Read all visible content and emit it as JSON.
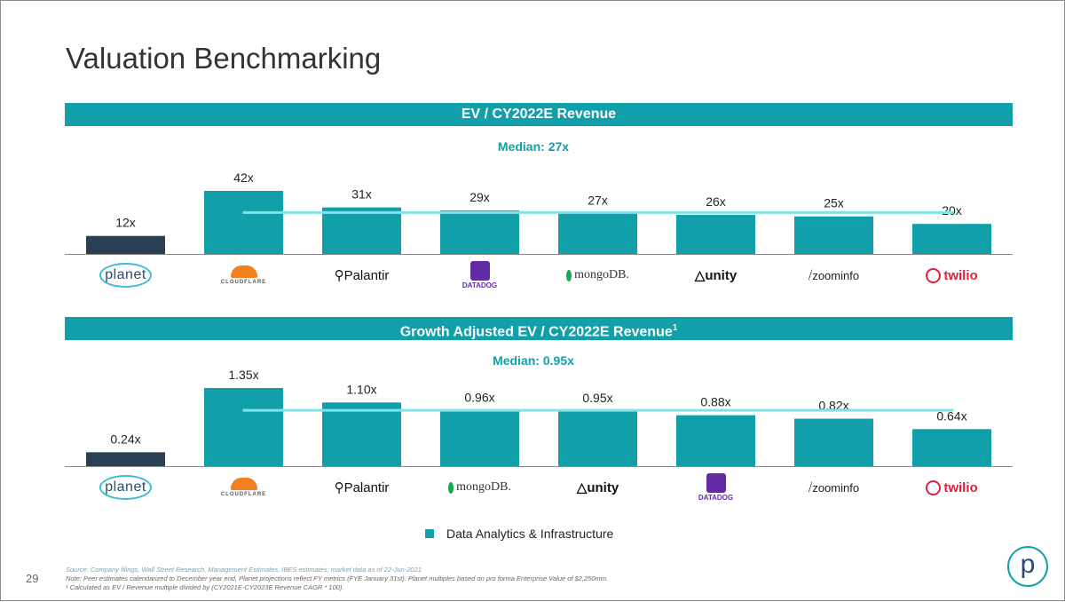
{
  "title": "Valuation Benchmarking",
  "legend": {
    "label": "Data Analytics & Infrastructure"
  },
  "footnotes": [
    "Source: Company filings, Wall Street Research, Management Estimates, IBES estimates; market data as of 22-Jun-2021",
    "Note: Peer estimates calendarized to December year end, Planet projections reflect FY metrics (FYE January 31st). Planet multiples based on pro forma Enterprise Value of $2,250mm.",
    "¹ Calculated as EV / Revenue multiple divided by (CY2021E-CY2023E Revenue CAGR * 100)."
  ],
  "page_number": "29",
  "brand_logo": "p",
  "colors": {
    "teal": "#119fa9",
    "navy": "#2b3f52",
    "median_line": "#7fe3ea"
  },
  "chart_data": [
    {
      "type": "bar",
      "title": "EV / CY2022E Revenue",
      "title_sup": "",
      "median_label": "Median: 27x",
      "median": 27,
      "categories": [
        "planet",
        "CLOUDFLARE",
        "Palantir",
        "DATADOG",
        "mongoDB.",
        "unity",
        "zoominfo",
        "twilio"
      ],
      "values": [
        12,
        42,
        31,
        29,
        27,
        26,
        25,
        20
      ],
      "labels": [
        "12x",
        "42x",
        "31x",
        "29x",
        "27x",
        "26x",
        "25x",
        "20x"
      ],
      "highlight_index": 0,
      "ylim": [
        0,
        42
      ]
    },
    {
      "type": "bar",
      "title": "Growth Adjusted EV / CY2022E Revenue",
      "title_sup": "1",
      "median_label": "Median: 0.95x",
      "median": 0.95,
      "categories": [
        "planet",
        "CLOUDFLARE",
        "Palantir",
        "mongoDB.",
        "unity",
        "DATADOG",
        "zoominfo",
        "twilio"
      ],
      "values": [
        0.24,
        1.35,
        1.1,
        0.96,
        0.95,
        0.88,
        0.82,
        0.64
      ],
      "labels": [
        "0.24x",
        "1.35x",
        "1.10x",
        "0.96x",
        "0.95x",
        "0.88x",
        "0.82x",
        "0.64x"
      ],
      "highlight_index": 0,
      "ylim": [
        0,
        1.35
      ]
    }
  ]
}
